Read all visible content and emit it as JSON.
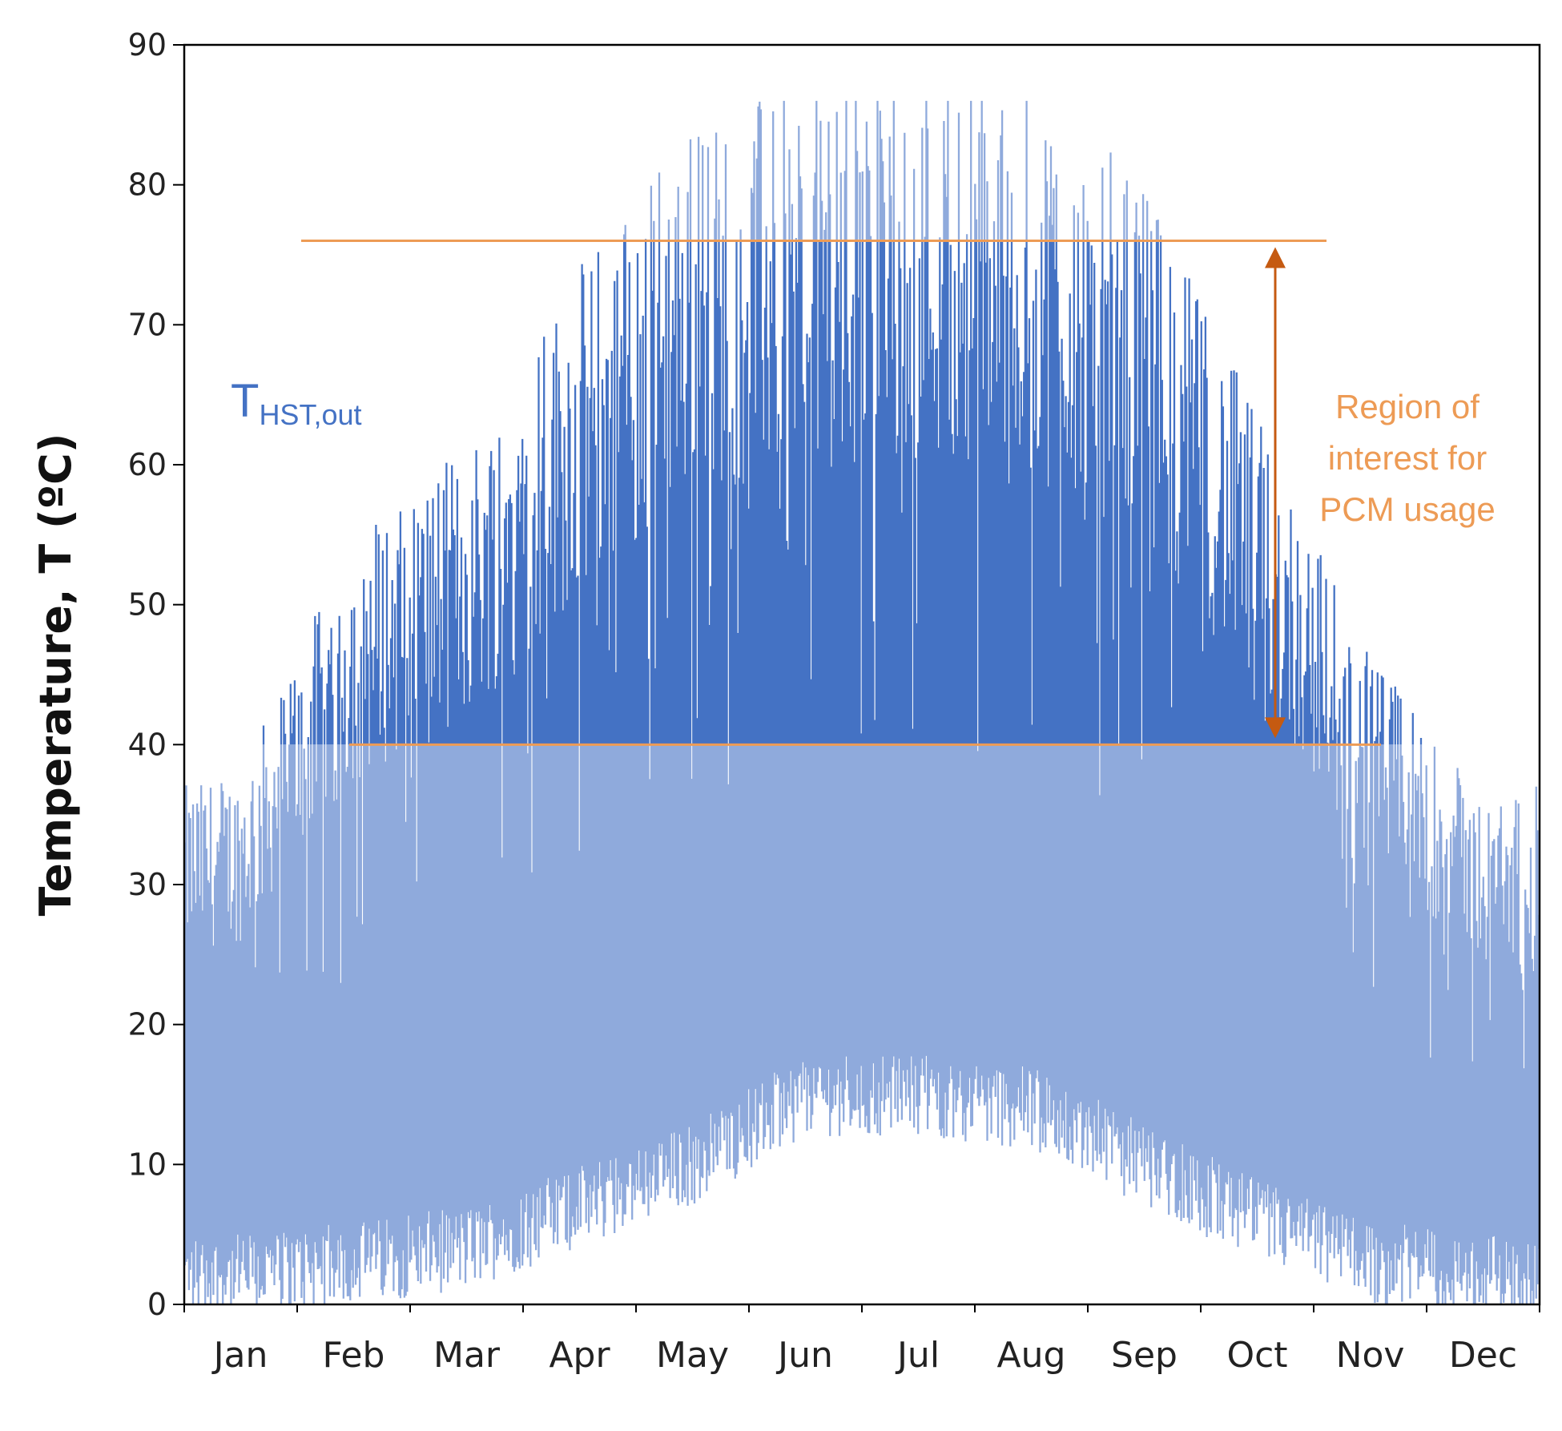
{
  "chart_data": {
    "type": "area",
    "title": "",
    "xlabel": "",
    "ylabel": "Temperature, T (ºC)",
    "ylim": [
      0,
      90
    ],
    "yticks": [
      0,
      10,
      20,
      30,
      40,
      50,
      60,
      70,
      80,
      90
    ],
    "categories": [
      "Jan",
      "Feb",
      "Mar",
      "Apr",
      "May",
      "Jun",
      "Jul",
      "Aug",
      "Sep",
      "Oct",
      "Nov",
      "Dec"
    ],
    "series": [
      {
        "name": "T_HST,out",
        "label_main": "T",
        "label_sub": "HST,out",
        "description": "hourly outlet temperature; approximate monthly daily-max envelope and daily-min floor",
        "monthly_max": [
          36,
          52,
          58,
          70,
          80,
          82,
          84,
          82,
          76,
          60,
          44,
          34
        ],
        "monthly_min": [
          1,
          2,
          3,
          6,
          9,
          14,
          14,
          13,
          9,
          5,
          2,
          1
        ]
      }
    ],
    "bands": [
      {
        "name": "lower_limit",
        "value": 40
      },
      {
        "name": "upper_limit",
        "value": 76
      }
    ],
    "annotation": {
      "lines": [
        "Region of",
        "interest for",
        "PCM usage"
      ]
    },
    "colors": {
      "series_light": "#8faadc",
      "series_dark": "#4472c4",
      "accent": "#ed9b55",
      "arrow": "#c55a11",
      "label": "#4472c4",
      "axis": "#000000"
    }
  }
}
